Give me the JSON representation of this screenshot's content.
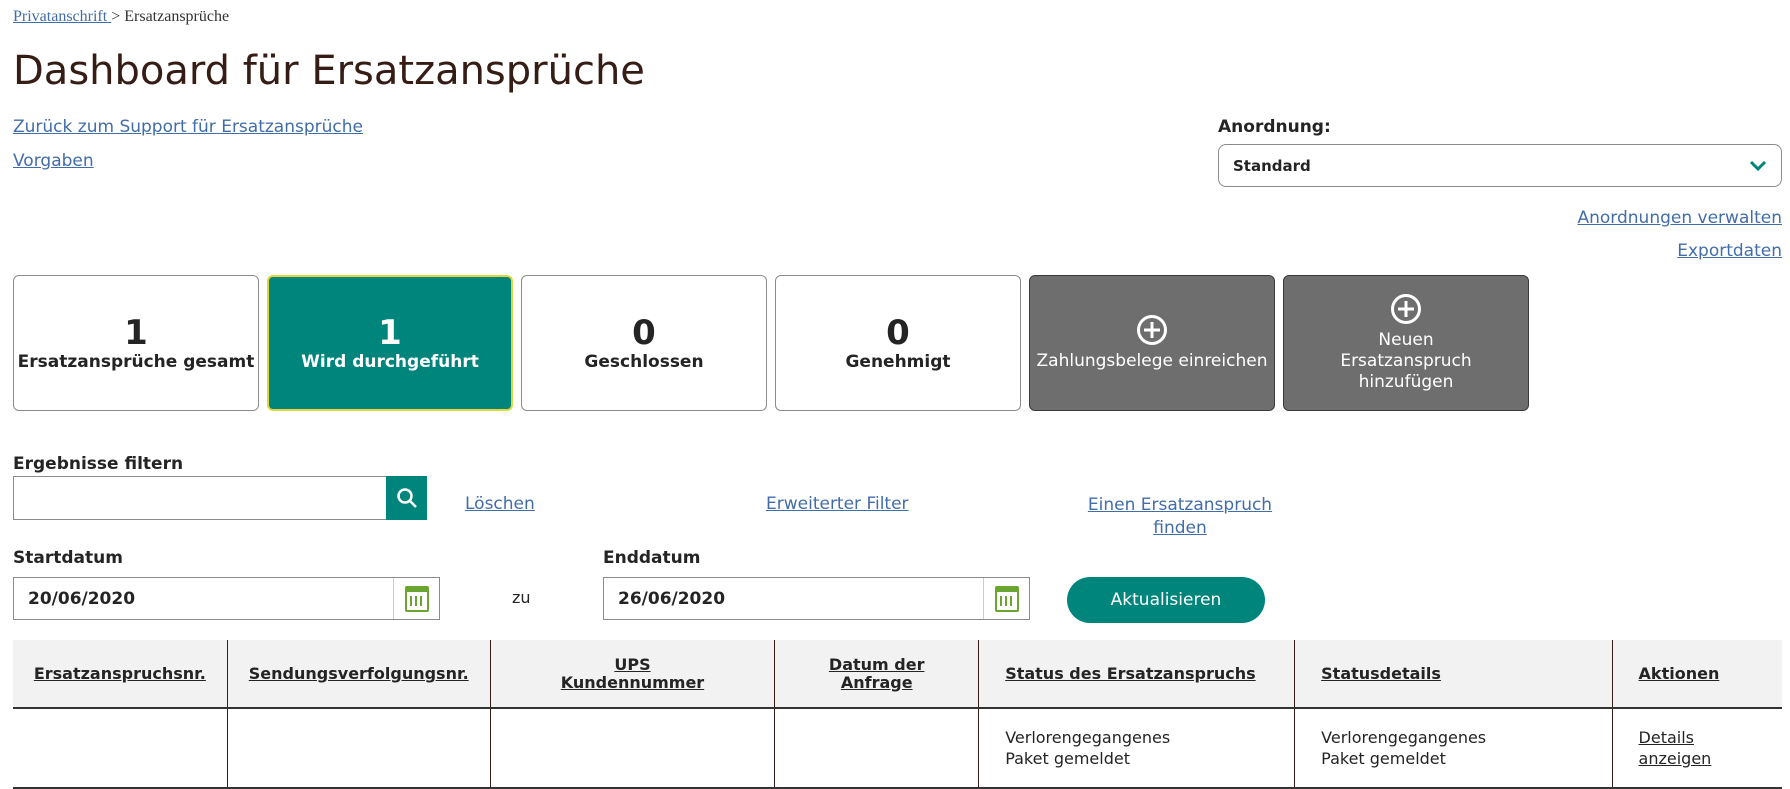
{
  "breadcrumb": {
    "link": "Privatanschrift ",
    "separator": " > ",
    "current": "Ersatzansprüche"
  },
  "title": "Dashboard für Ersatzansprüche",
  "links": {
    "support": "Zurück zum Support für Ersatzansprüche",
    "defaults": "Vorgaben",
    "manage": "Anordnungen verwalten",
    "export": "Exportdaten"
  },
  "layout": {
    "label": "Anordnung:",
    "selected": "Standard"
  },
  "cards": [
    {
      "count": "1",
      "label": "Ersatzansprüche gesamt"
    },
    {
      "count": "1",
      "label": "Wird durchgeführt",
      "active": true
    },
    {
      "count": "0",
      "label": "Geschlossen"
    },
    {
      "count": "0",
      "label": "Genehmigt"
    }
  ],
  "actions": [
    {
      "icon": "plus-circle-icon",
      "label": "Zahlungsbelege einreichen"
    },
    {
      "icon": "plus-circle-icon",
      "label": "Neuen Ersatzanspruch hinzufügen"
    }
  ],
  "filter": {
    "label": "Ergebnisse filtern",
    "value": "",
    "clear": "Löschen",
    "advanced": "Erweiterter Filter",
    "find": "Einen Ersatzanspruch finden"
  },
  "dates": {
    "start_label": "Startdatum",
    "start": "20/06/2020",
    "to": "zu",
    "end_label": "Enddatum",
    "end": "26/06/2020",
    "update": "Aktualisieren"
  },
  "table": {
    "headers": [
      "Ersatzanspruchsnr.",
      "Sendungsverfolgungsnr.",
      "UPS Kundennummer",
      "Datum der Anfrage",
      "Status des Ersatzanspruchs",
      "Statusdetails",
      "Aktionen"
    ],
    "rows": [
      [
        "",
        "",
        "",
        "",
        "Verlorengegangenes Paket gemeldet",
        "Verlorengegangenes Paket gemeldet",
        "Details anzeigen"
      ]
    ]
  },
  "colors": {
    "accent": "#00857d",
    "link": "#426da9",
    "dark_card": "#6e6e6e",
    "highlight_border": "#e4d63a"
  }
}
